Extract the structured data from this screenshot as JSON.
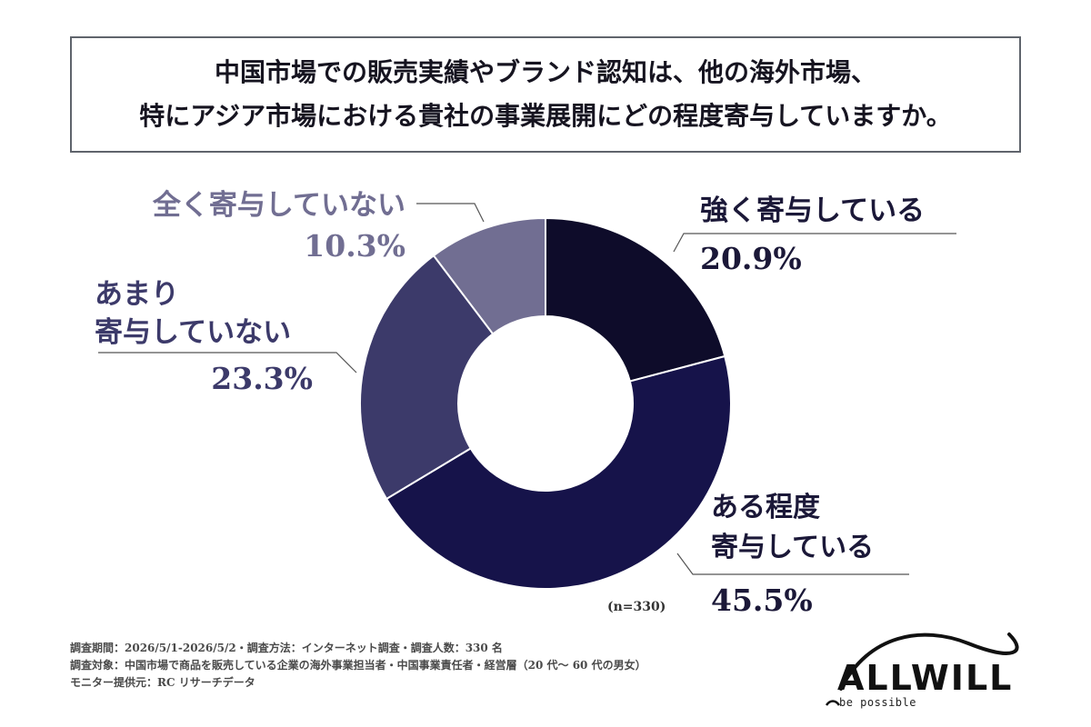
{
  "title": {
    "line1": "中国市場での販売実績やブランド認知は、他の海外市場、",
    "line2": "特にアジア市場における貴社の事業展開にどの程度寄与していますか。"
  },
  "chart_data": {
    "type": "pie",
    "donut": true,
    "sample_note": "(n=330)",
    "slices": [
      {
        "label_lines": [
          "強く寄与している"
        ],
        "value": 20.9,
        "value_label": "20.9%",
        "color": "#0e0c2a",
        "label_color": "#1b1838"
      },
      {
        "label_lines": [
          "ある程度",
          "寄与している"
        ],
        "value": 45.5,
        "value_label": "45.5%",
        "color": "#16134a",
        "label_color": "#1b1838"
      },
      {
        "label_lines": [
          "あまり",
          "寄与していない"
        ],
        "value": 23.3,
        "value_label": "23.3%",
        "color": "#3c3a6a",
        "label_color": "#3c3a6a"
      },
      {
        "label_lines": [
          "全く寄与していない"
        ],
        "value": 10.3,
        "value_label": "10.3%",
        "color": "#716e92",
        "label_color": "#716e92"
      }
    ]
  },
  "footer": {
    "line1": "調査期間：2026/5/1-2026/5/2・調査方法：インターネット調査・調査人数：330 名",
    "line2": "調査対象：中国市場で商品を販売している企業の海外事業担当者・中国事業責任者・経営層（20 代〜 60 代の男女）",
    "line3": "モニター提供元：RC リサーチデータ"
  },
  "logo": {
    "wordmark": "ALLWILL",
    "tagline": "be possible"
  }
}
